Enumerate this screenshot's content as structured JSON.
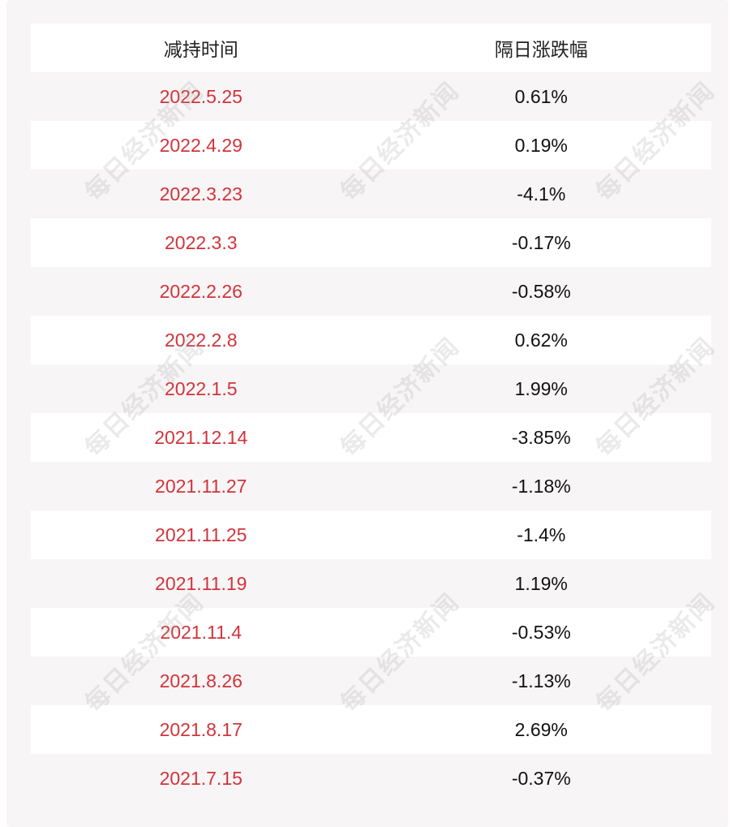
{
  "header": {
    "col_date": "减持时间",
    "col_change": "隔日涨跌幅"
  },
  "watermark_text": "每日经济新闻",
  "rows": [
    {
      "date": "2022.5.25",
      "change": "0.61%"
    },
    {
      "date": "2022.4.29",
      "change": "0.19%"
    },
    {
      "date": "2022.3.23",
      "change": "-4.1%"
    },
    {
      "date": "2022.3.3",
      "change": "-0.17%"
    },
    {
      "date": "2022.2.26",
      "change": "-0.58%"
    },
    {
      "date": "2022.2.8",
      "change": "0.62%"
    },
    {
      "date": "2022.1.5",
      "change": "1.99%"
    },
    {
      "date": "2021.12.14",
      "change": "-3.85%"
    },
    {
      "date": "2021.11.27",
      "change": "-1.18%"
    },
    {
      "date": "2021.11.25",
      "change": "-1.4%"
    },
    {
      "date": "2021.11.19",
      "change": "1.19%"
    },
    {
      "date": "2021.11.4",
      "change": "-0.53%"
    },
    {
      "date": "2021.8.26",
      "change": "-1.13%"
    },
    {
      "date": "2021.8.17",
      "change": "2.69%"
    },
    {
      "date": "2021.7.15",
      "change": "-0.37%"
    }
  ],
  "colors": {
    "date_text": "#d1343b",
    "change_text": "#111111",
    "panel_bg": "#f8f5f6",
    "row_white": "#ffffff"
  }
}
